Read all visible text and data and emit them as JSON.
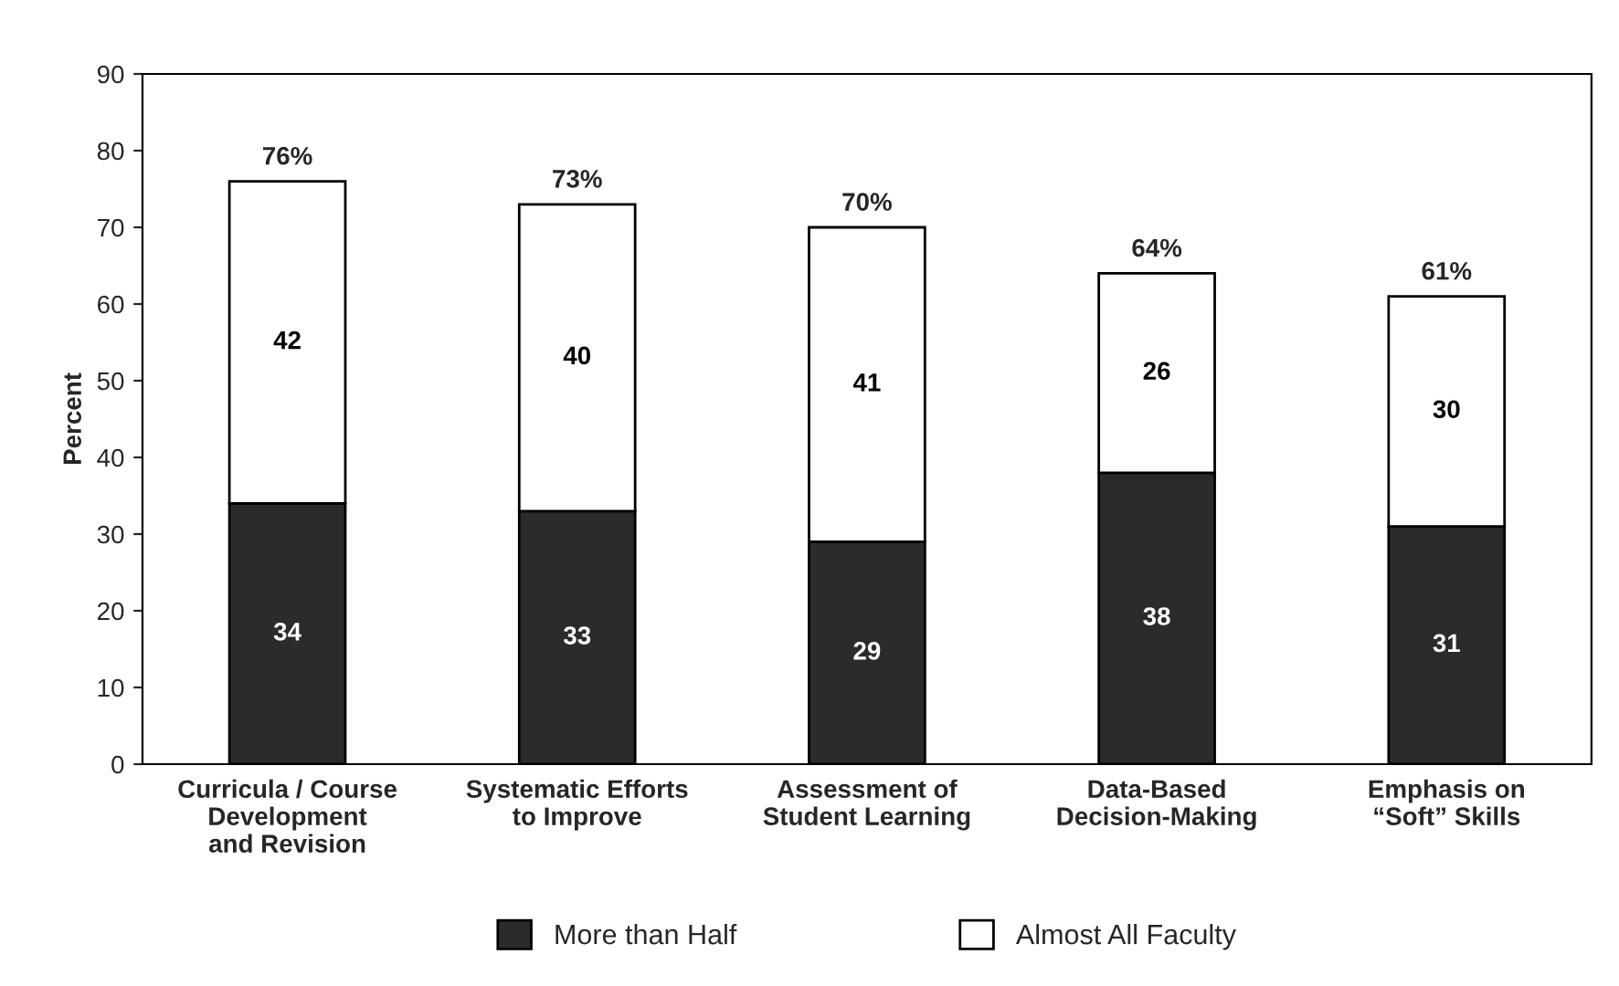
{
  "chart_data": {
    "type": "bar",
    "stacked": true,
    "ylabel": "Percent",
    "categories": [
      "Curricula / Course\nDevelopment\nand Revision",
      "Systematic Efforts\nto Improve",
      "Assessment of\nStudent Learning",
      "Data-Based\nDecision-Making",
      "Emphasis on\n“Soft” Skills"
    ],
    "series": [
      {
        "name": "More than Half",
        "color": "#2b2b2b",
        "values": [
          34,
          33,
          29,
          38,
          31
        ]
      },
      {
        "name": "Almost All Faculty",
        "color": "#ffffff",
        "values": [
          42,
          40,
          41,
          26,
          30
        ]
      }
    ],
    "data_labels": true,
    "totals": [
      "76%",
      "73%",
      "70%",
      "64%",
      "61%"
    ],
    "ylim": [
      0,
      90
    ],
    "yticks": [
      0,
      10,
      20,
      30,
      40,
      50,
      60,
      70,
      80,
      90
    ],
    "grid": false,
    "legend": "bottom"
  }
}
